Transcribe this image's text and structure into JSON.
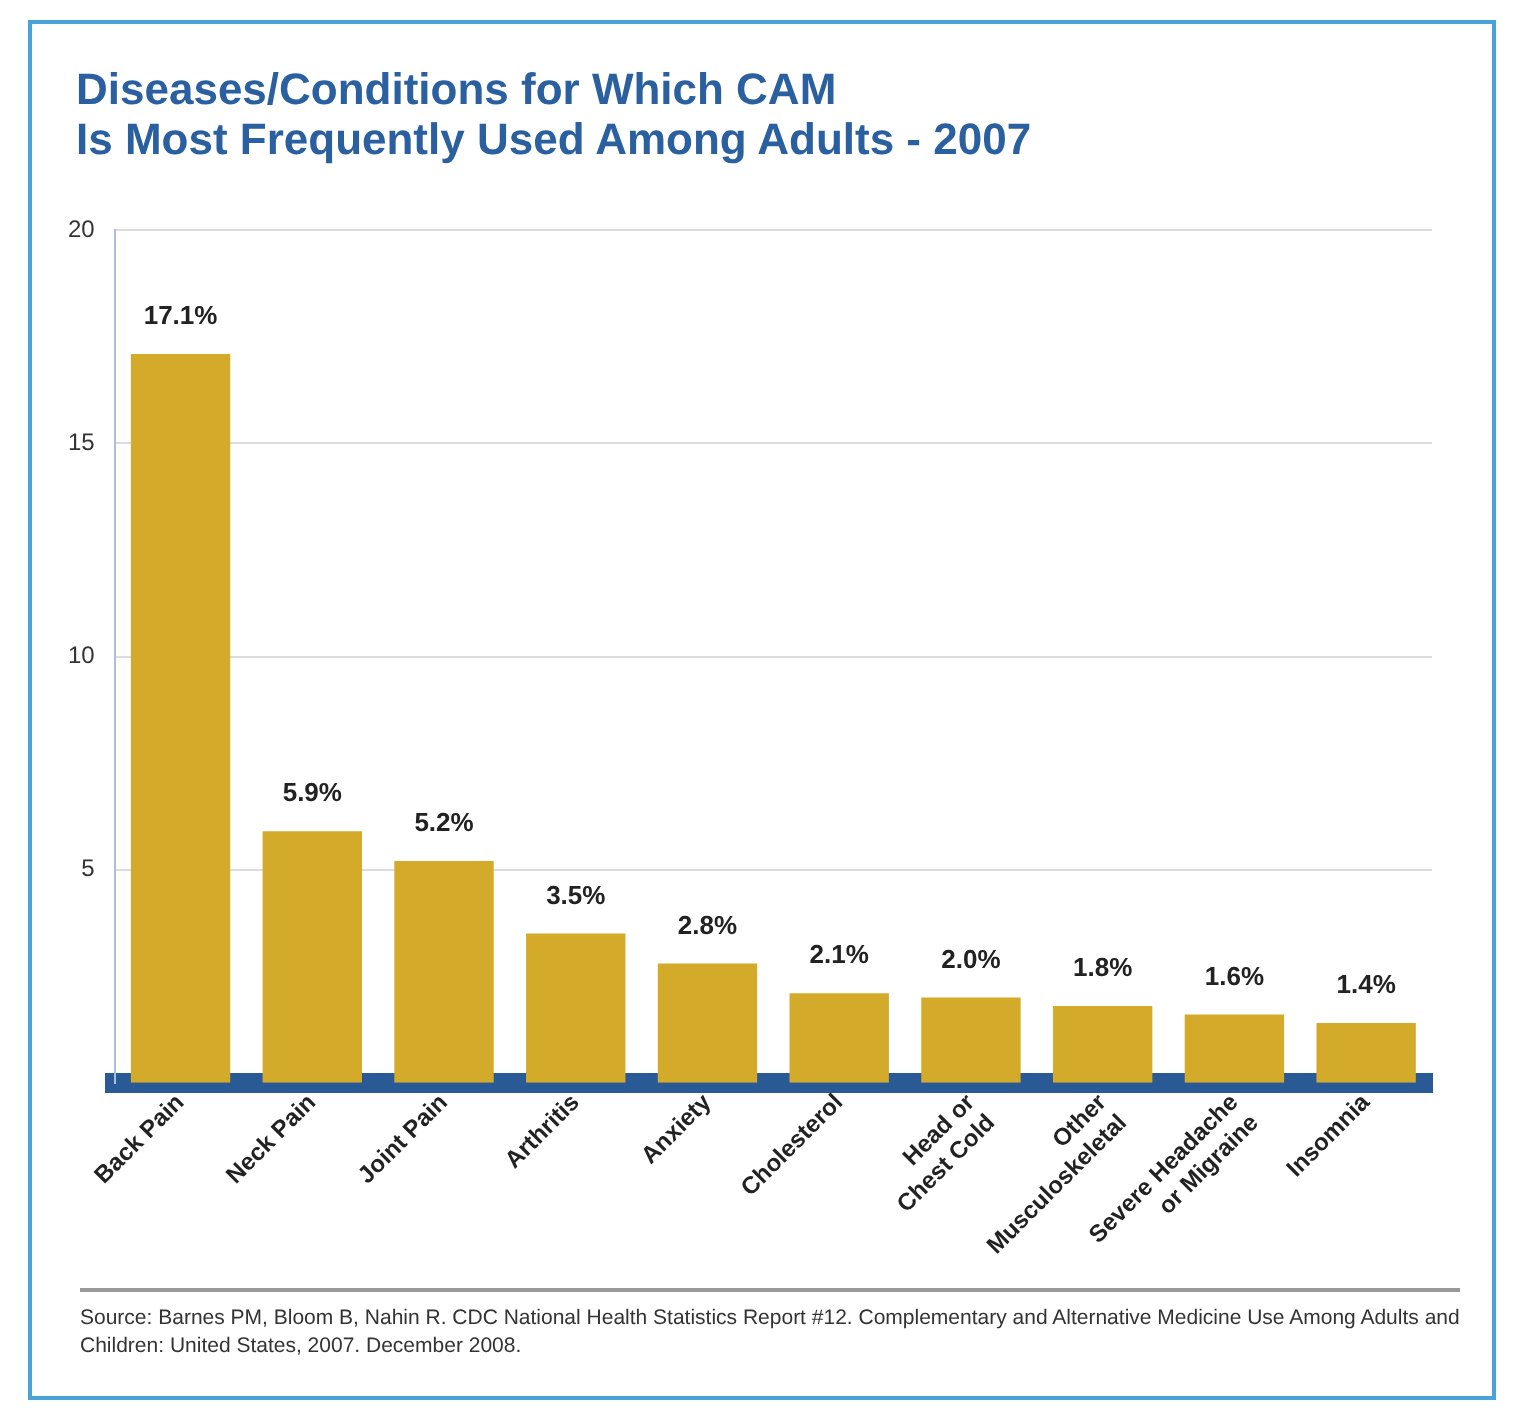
{
  "chart_data": {
    "type": "bar",
    "title": "Diseases/Conditions for Which CAM\nIs Most Frequently Used Among Adults - 2007",
    "categories": [
      "Back Pain",
      "Neck Pain",
      "Joint Pain",
      "Arthritis",
      "Anxiety",
      "Cholesterol",
      "Head or\nChest Cold",
      "Other\nMusculoskeletal",
      "Severe Headache\nor Migraine",
      "Insomnia"
    ],
    "values": [
      17.1,
      5.9,
      5.2,
      3.5,
      2.8,
      2.1,
      2.0,
      1.8,
      1.6,
      1.4
    ],
    "value_labels": [
      "17.1%",
      "5.9%",
      "5.2%",
      "3.5%",
      "2.8%",
      "2.1%",
      "2.0%",
      "1.8%",
      "1.6%",
      "1.4%"
    ],
    "color": "#d4aa2a",
    "ylim": [
      0,
      20
    ],
    "yticks": [
      5,
      10,
      15,
      20
    ],
    "grid": "y",
    "annotations": [
      "Source: Barnes PM, Bloom B, Nahin R. CDC National Health Statistics Report #12. Complementary and Alternative Medicine Use Among Adults and Children: United States, 2007. December 2008."
    ]
  }
}
